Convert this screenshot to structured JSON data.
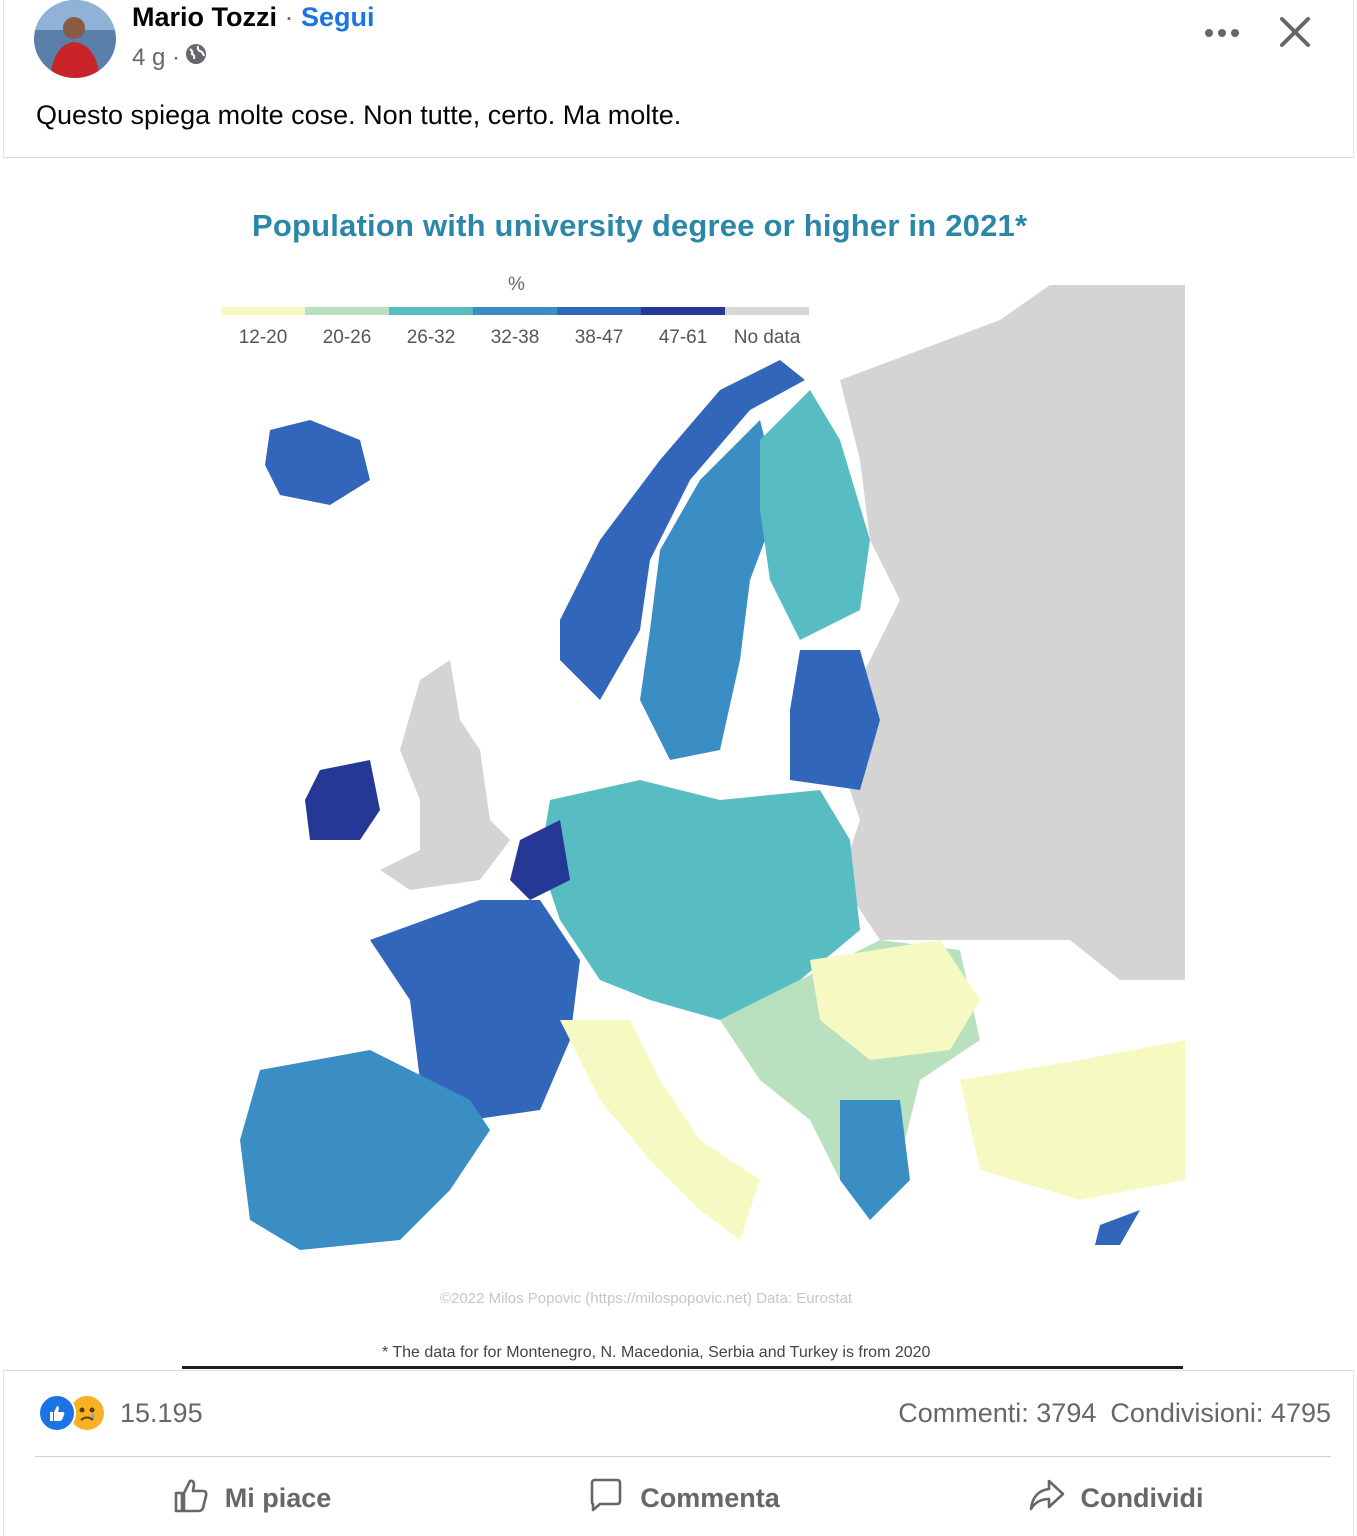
{
  "post": {
    "author": "Mario Tozzi",
    "separator": "·",
    "follow_label": "Segui",
    "time": "4 g ·",
    "text": "Questo spiega molte cose. Non tutte, certo. Ma molte."
  },
  "icons": {
    "more": "more-icon",
    "close": "close-icon",
    "privacy": "globe-icon",
    "like": "thumbs-up-icon",
    "comment": "comment-icon",
    "share": "share-icon"
  },
  "image": {
    "title": "Population with university degree or higher in 2021*",
    "legend_title": "%",
    "legend": [
      {
        "label": "12-20",
        "color": "#f6f9c2"
      },
      {
        "label": "20-26",
        "color": "#b9e1bf"
      },
      {
        "label": "26-32",
        "color": "#58bcc3"
      },
      {
        "label": "32-38",
        "color": "#3a8ec3"
      },
      {
        "label": "38-47",
        "color": "#3266ba"
      },
      {
        "label": "47-61",
        "color": "#263896"
      },
      {
        "label": "No data",
        "color": "#d6d6d6"
      }
    ],
    "credit": "©2022 Milos Popovic (https://milospopovic.net) Data: Eurostat",
    "footnote": "* The data for for Montenegro, N. Macedonia, Serbia and Turkey is from 2020"
  },
  "stats": {
    "reactions_count": "15.195",
    "comments": "Commenti: 3794",
    "shares": "Condivisioni: 4795"
  },
  "actions": {
    "like": "Mi piace",
    "comment": "Commenta",
    "share": "Condividi"
  }
}
